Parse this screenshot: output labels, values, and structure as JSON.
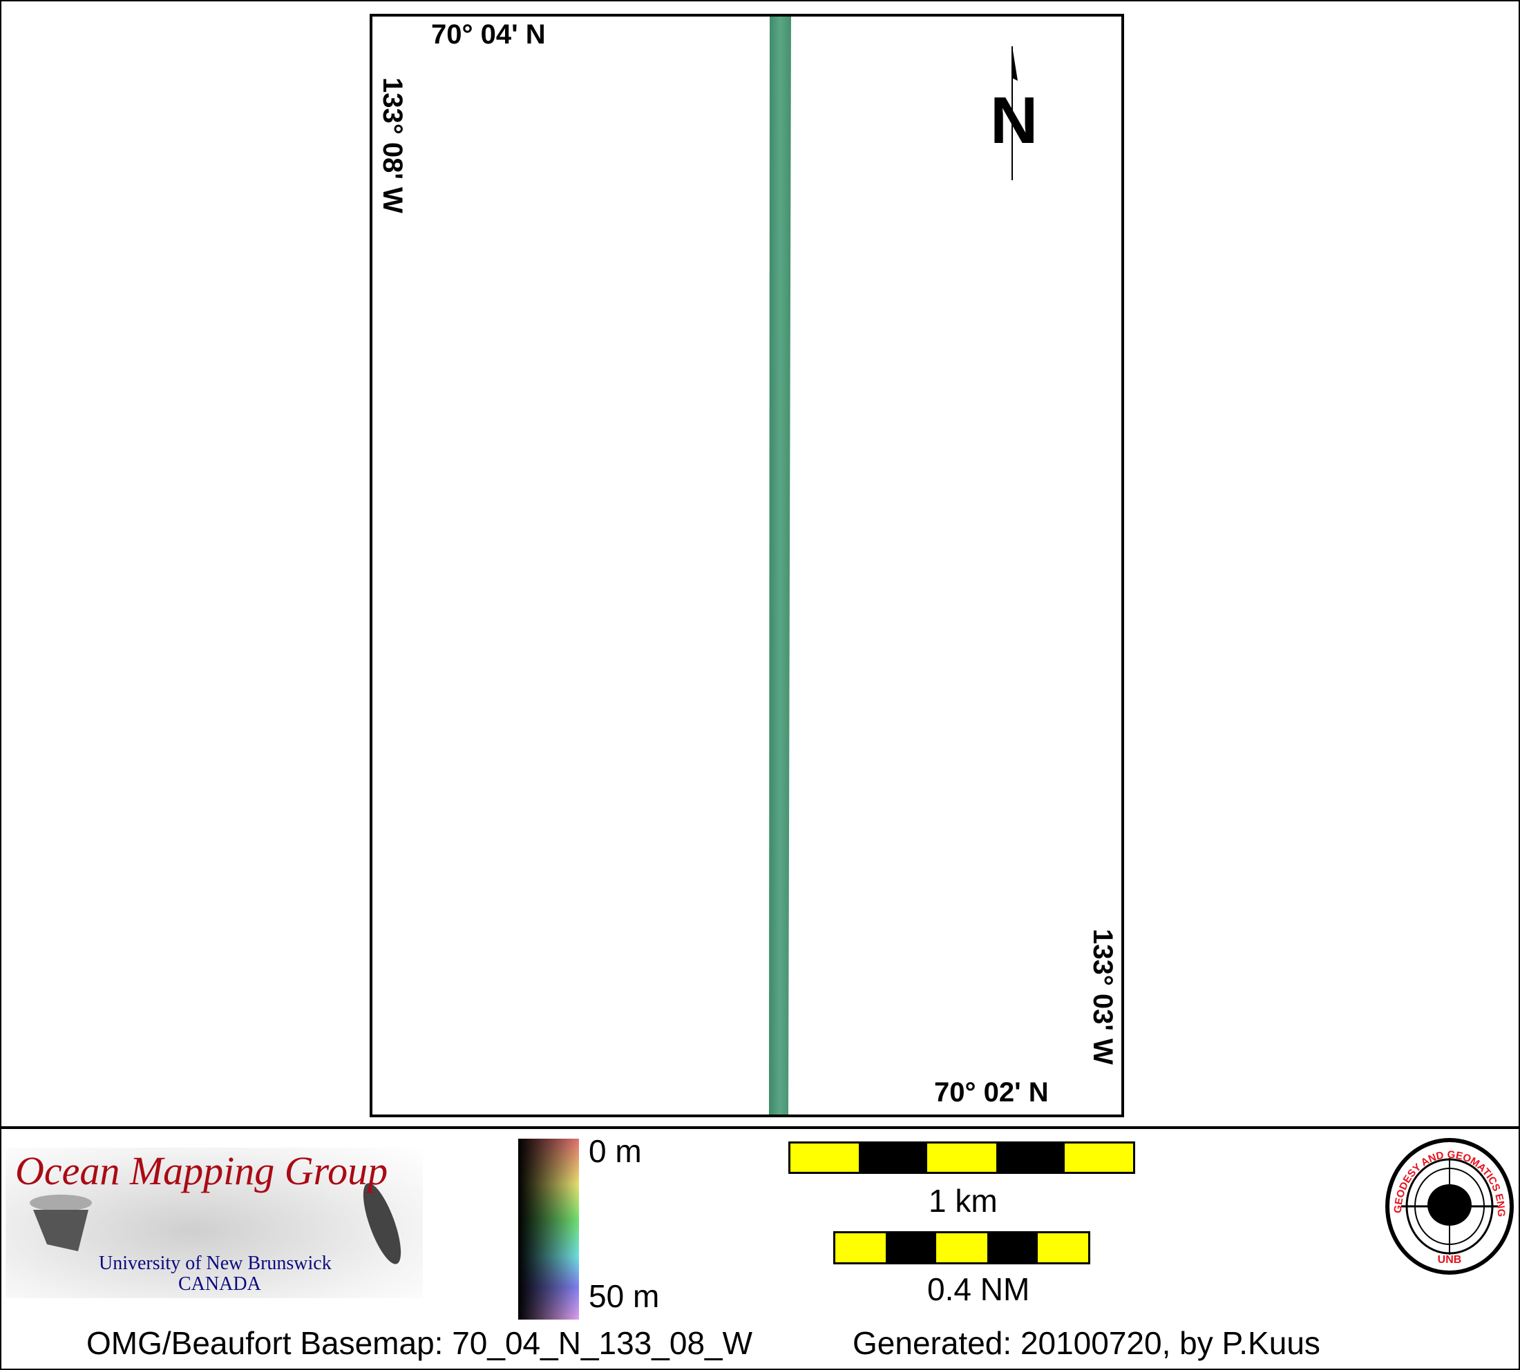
{
  "map": {
    "top_left_lat": "70° 04' N",
    "left_lon": "133° 08' W",
    "right_lon": "133° 03' W",
    "bottom_right_lat": "70° 02' N",
    "north_arrow_label": "N",
    "swath_color": "#4f9a78"
  },
  "legend": {
    "logo": {
      "title": "Ocean Mapping Group",
      "line1": "University of New Brunswick",
      "line2": "CANADA"
    },
    "colorbar": {
      "top_label": "0 m",
      "bottom_label": "50 m"
    },
    "scale_km": {
      "label": "1 km",
      "segments": [
        "yellow",
        "black",
        "yellow",
        "black",
        "yellow"
      ]
    },
    "scale_nm": {
      "label": "0.4 NM",
      "segments": [
        "yellow",
        "black",
        "yellow",
        "black",
        "yellow"
      ]
    },
    "seal": {
      "ring_text": "GEODESY AND GEOMATICS ENGINEERING",
      "bottom_text": "UNB"
    },
    "colors": {
      "yellow": "#ffff00",
      "black": "#000000",
      "logo_red": "#aa0a14",
      "logo_blue": "#0a0a80",
      "seal_red": "#e8101a"
    }
  },
  "footer": {
    "basemap": "OMG/Beaufort Basemap: 70_04_N_133_08_W",
    "generated": "Generated: 20100720, by P.Kuus"
  }
}
